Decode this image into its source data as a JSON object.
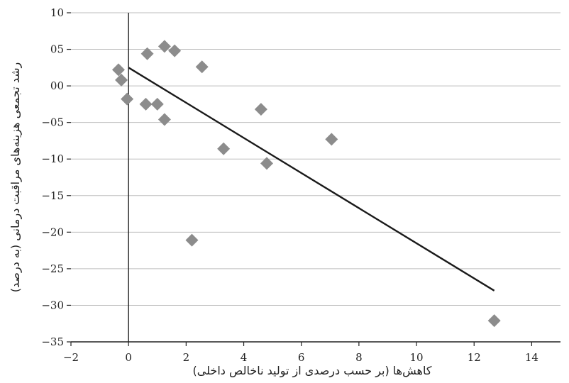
{
  "chart_data": {
    "type": "scatter",
    "title": "",
    "xlabel": "کاهش‌ها (بر حسب درصدی از تولید ناخالص داخلی)",
    "ylabel": "رشد تجمعی هزینه‌های مراقبت درمانی (به درصد)",
    "xlim": [
      -2,
      15
    ],
    "ylim": [
      -35,
      10
    ],
    "x_ticks": [
      -2,
      0,
      2,
      4,
      6,
      8,
      10,
      12,
      14
    ],
    "x_tick_labels": [
      "−2",
      "0",
      "2",
      "4",
      "6",
      "8",
      "10",
      "12",
      "14"
    ],
    "y_ticks": [
      10,
      5,
      0,
      -5,
      -10,
      -15,
      -20,
      -25,
      -30,
      -35
    ],
    "y_tick_labels": [
      "10",
      "05",
      "00",
      "−05",
      "−10",
      "−15",
      "−20",
      "−25",
      "−30",
      "−35"
    ],
    "grid": "horizontal",
    "points": [
      {
        "x": -0.35,
        "y": 2.2
      },
      {
        "x": -0.25,
        "y": 0.8
      },
      {
        "x": -0.05,
        "y": -1.8
      },
      {
        "x": 0.65,
        "y": 4.4
      },
      {
        "x": 0.6,
        "y": -2.5
      },
      {
        "x": 1.0,
        "y": -2.5
      },
      {
        "x": 1.25,
        "y": 5.4
      },
      {
        "x": 1.6,
        "y": 4.8
      },
      {
        "x": 1.25,
        "y": -4.6
      },
      {
        "x": 2.55,
        "y": 2.6
      },
      {
        "x": 3.3,
        "y": -8.6
      },
      {
        "x": 2.2,
        "y": -21.1
      },
      {
        "x": 4.6,
        "y": -3.2
      },
      {
        "x": 4.8,
        "y": -10.6
      },
      {
        "x": 7.05,
        "y": -7.3
      },
      {
        "x": 12.7,
        "y": -32.1
      }
    ],
    "fit_line": {
      "x": [
        0,
        12.7
      ],
      "y": [
        2.5,
        -28.0
      ]
    },
    "colors": {
      "marker": "#8c8c8c",
      "fit_line": "#1a1a1a",
      "grid": "#bdbdbd",
      "axis": "#222222"
    }
  }
}
